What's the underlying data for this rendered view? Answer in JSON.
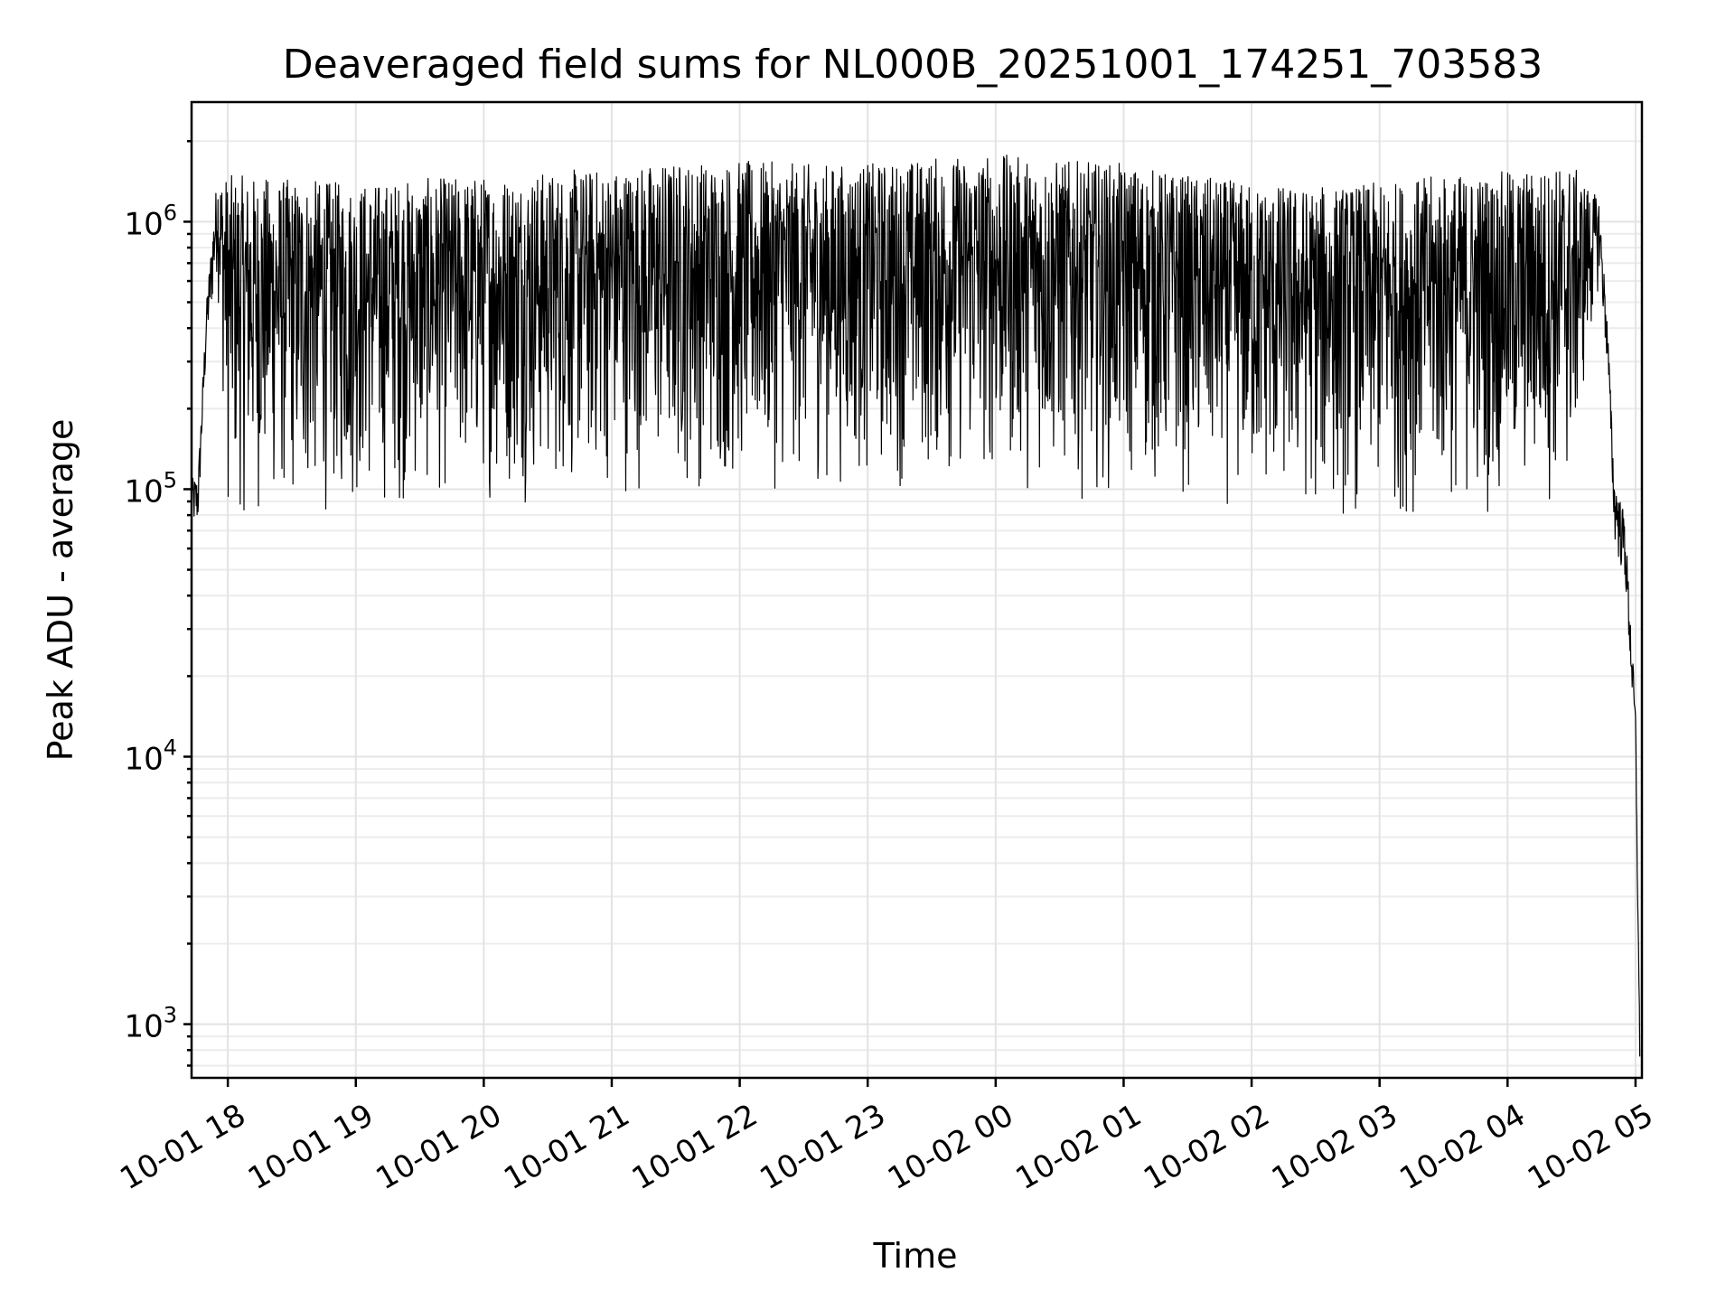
{
  "chart_data": {
    "type": "line",
    "title": "Deaveraged field sums for NL000B_20251001_174251_703583",
    "xlabel": "Time",
    "ylabel": "Peak ADU - average",
    "yscale": "log",
    "ylim": [
      630,
      2800000
    ],
    "xlim": [
      "2025-10-01 17:43",
      "2025-10-02 05:03"
    ],
    "grid": true,
    "x_ticks": [
      {
        "time": "2025-10-01 18:00",
        "label": "10-01 18"
      },
      {
        "time": "2025-10-01 19:00",
        "label": "10-01 19"
      },
      {
        "time": "2025-10-01 20:00",
        "label": "10-01 20"
      },
      {
        "time": "2025-10-01 21:00",
        "label": "10-01 21"
      },
      {
        "time": "2025-10-01 22:00",
        "label": "10-01 22"
      },
      {
        "time": "2025-10-01 23:00",
        "label": "10-01 23"
      },
      {
        "time": "2025-10-02 00:00",
        "label": "10-02 00"
      },
      {
        "time": "2025-10-02 01:00",
        "label": "10-02 01"
      },
      {
        "time": "2025-10-02 02:00",
        "label": "10-02 02"
      },
      {
        "time": "2025-10-02 03:00",
        "label": "10-02 03"
      },
      {
        "time": "2025-10-02 04:00",
        "label": "10-02 04"
      },
      {
        "time": "2025-10-02 05:00",
        "label": "10-02 05"
      }
    ],
    "y_ticks": [
      {
        "value": 1000,
        "base": "10",
        "exp": "3"
      },
      {
        "value": 10000,
        "base": "10",
        "exp": "4"
      },
      {
        "value": 100000,
        "base": "10",
        "exp": "5"
      },
      {
        "value": 1000000,
        "base": "10",
        "exp": "6"
      }
    ],
    "series": [
      {
        "color": "#000000",
        "envelope": {
          "x": [
            "2025-10-01 17:43",
            "2025-10-01 17:46",
            "2025-10-01 17:50",
            "2025-10-01 17:55",
            "2025-10-01 18:00",
            "2025-10-01 18:30",
            "2025-10-01 19:00",
            "2025-10-01 19:30",
            "2025-10-01 20:00",
            "2025-10-01 20:30",
            "2025-10-01 21:00",
            "2025-10-01 21:30",
            "2025-10-01 22:00",
            "2025-10-01 22:30",
            "2025-10-01 23:00",
            "2025-10-01 23:30",
            "2025-10-02 00:00",
            "2025-10-02 00:30",
            "2025-10-02 01:00",
            "2025-10-02 01:30",
            "2025-10-02 02:00",
            "2025-10-02 02:30",
            "2025-10-02 03:00",
            "2025-10-02 03:30",
            "2025-10-02 04:00",
            "2025-10-02 04:30",
            "2025-10-02 04:43",
            "2025-10-02 04:47",
            "2025-10-02 04:50",
            "2025-10-02 04:55",
            "2025-10-02 05:00",
            "2025-10-02 05:02"
          ],
          "high": [
            110000,
            110000,
            500000,
            1500000,
            1500000,
            1450000,
            1400000,
            1450000,
            1500000,
            1550000,
            1600000,
            1700000,
            1700000,
            1650000,
            1650000,
            1750000,
            1800000,
            1700000,
            1650000,
            1500000,
            1400000,
            1350000,
            1400000,
            1500000,
            1550000,
            1650000,
            1200000,
            400000,
            110000,
            80000,
            15000,
            900
          ],
          "low": [
            65000,
            65000,
            300000,
            600000,
            70000,
            70000,
            75000,
            80000,
            85000,
            85000,
            90000,
            90000,
            90000,
            95000,
            95000,
            95000,
            95000,
            90000,
            90000,
            85000,
            75000,
            70000,
            70000,
            75000,
            75000,
            80000,
            600000,
            250000,
            60000,
            40000,
            9000,
            700
          ]
        }
      }
    ]
  }
}
